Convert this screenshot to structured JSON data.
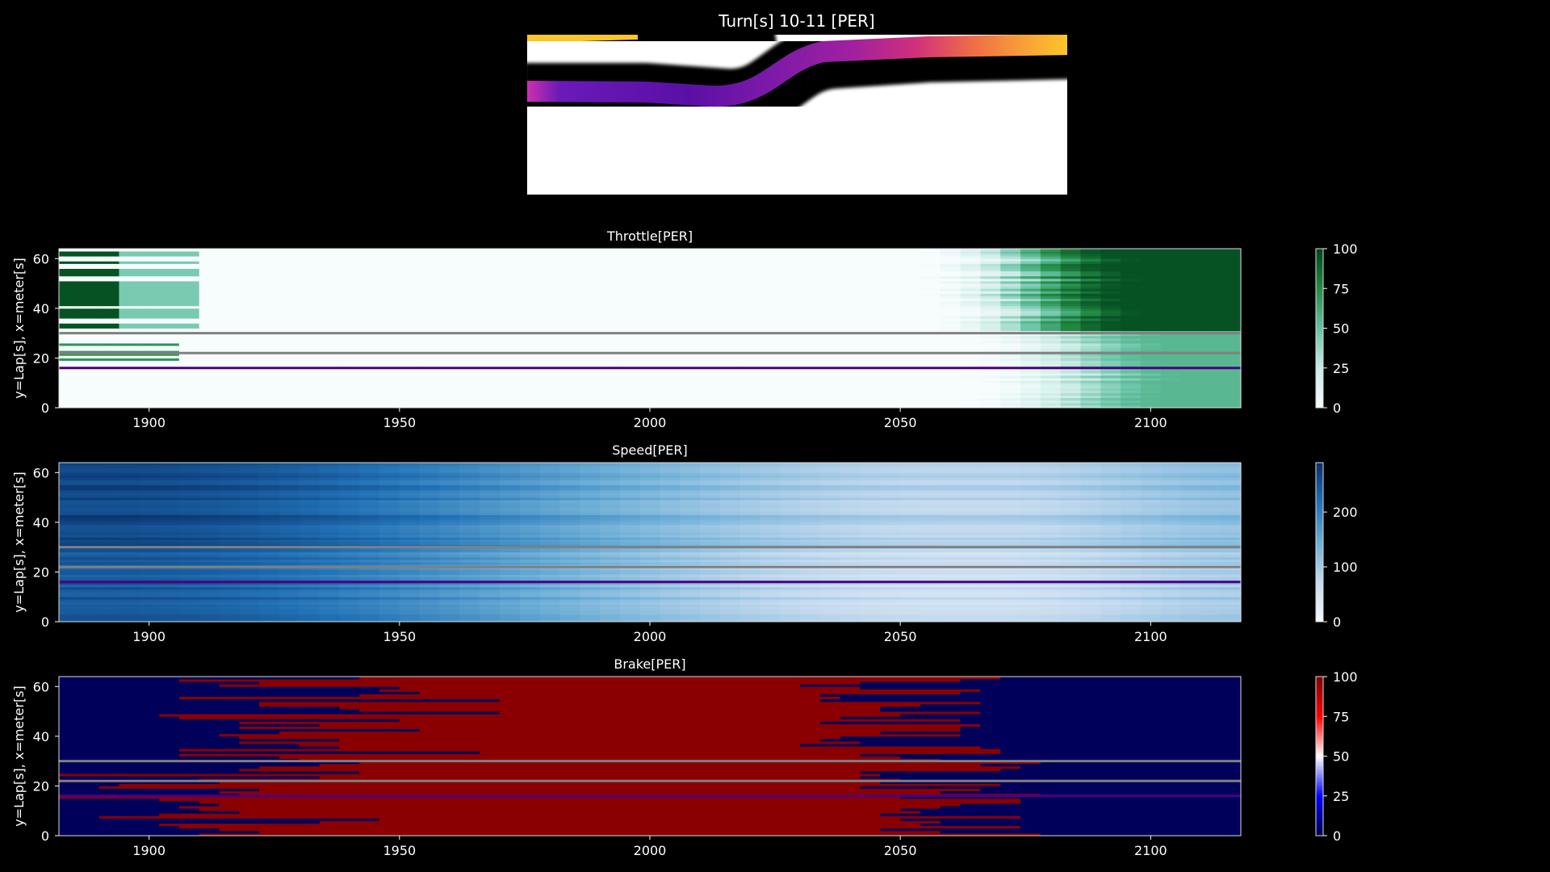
{
  "figure": {
    "title": "Turn[s] 10-11 [PER]",
    "background": "#000000",
    "text_color": "#ffffff"
  },
  "track_map": {
    "track_color": "#000000",
    "background": "#ffffff",
    "racing_line_gradient": [
      "#cc30b0",
      "#6a1ab8",
      "#5a0fa6",
      "#7c1aa8",
      "#a020a0",
      "#d0307a",
      "#ef6a48",
      "#f8a038",
      "#fdc52a"
    ]
  },
  "chart_data": [
    {
      "type": "heatmap",
      "title": "Throttle[PER]",
      "xlabel": "",
      "ylabel": "y=Lap[s], x=meter[s]",
      "xlim": [
        1882,
        2118
      ],
      "ylim": [
        0,
        64
      ],
      "x_ticks": [
        1900,
        1950,
        2000,
        2050,
        2100
      ],
      "y_ticks": [
        0,
        20,
        40,
        60
      ],
      "colormap": [
        "#f7fcfd",
        "#ccece6",
        "#66c2a4",
        "#238b45",
        "#00441b"
      ],
      "colorbar": {
        "range": [
          0,
          100
        ],
        "ticks": [
          0,
          25,
          50,
          75,
          100
        ]
      },
      "highlight_laps": [
        {
          "lap": 30,
          "color": "#808080"
        },
        {
          "lap": 22,
          "color": "#808080"
        },
        {
          "lap": 16,
          "color": "#4b0082"
        }
      ]
    },
    {
      "type": "heatmap",
      "title": "Speed[PER]",
      "xlabel": "",
      "ylabel": "y=Lap[s], x=meter[s]",
      "xlim": [
        1882,
        2118
      ],
      "ylim": [
        0,
        64
      ],
      "x_ticks": [
        1900,
        1950,
        2000,
        2050,
        2100
      ],
      "y_ticks": [
        0,
        20,
        40,
        60
      ],
      "colormap": [
        "#f7fbff",
        "#c6dbef",
        "#6baed6",
        "#2171b5",
        "#08306b"
      ],
      "colorbar": {
        "range": [
          0,
          290
        ],
        "ticks": [
          0,
          100,
          200
        ]
      },
      "highlight_laps": [
        {
          "lap": 30,
          "color": "#808080"
        },
        {
          "lap": 22,
          "color": "#808080"
        },
        {
          "lap": 16,
          "color": "#4b0082"
        }
      ]
    },
    {
      "type": "heatmap",
      "title": "Brake[PER]",
      "xlabel": "",
      "ylabel": "y=Lap[s], x=meter[s]",
      "xlim": [
        1882,
        2118
      ],
      "ylim": [
        0,
        64
      ],
      "x_ticks": [
        1900,
        1950,
        2000,
        2050,
        2100
      ],
      "y_ticks": [
        0,
        20,
        40,
        60
      ],
      "colormap": [
        "#00004c",
        "#0000ff",
        "#ffffff",
        "#ff0000",
        "#800000"
      ],
      "colorbar": {
        "range": [
          0,
          100
        ],
        "ticks": [
          0,
          25,
          50,
          75,
          100
        ]
      },
      "highlight_laps": [
        {
          "lap": 30,
          "color": "#808080"
        },
        {
          "lap": 22,
          "color": "#808080"
        },
        {
          "lap": 16,
          "color": "#4b0082"
        }
      ]
    }
  ]
}
